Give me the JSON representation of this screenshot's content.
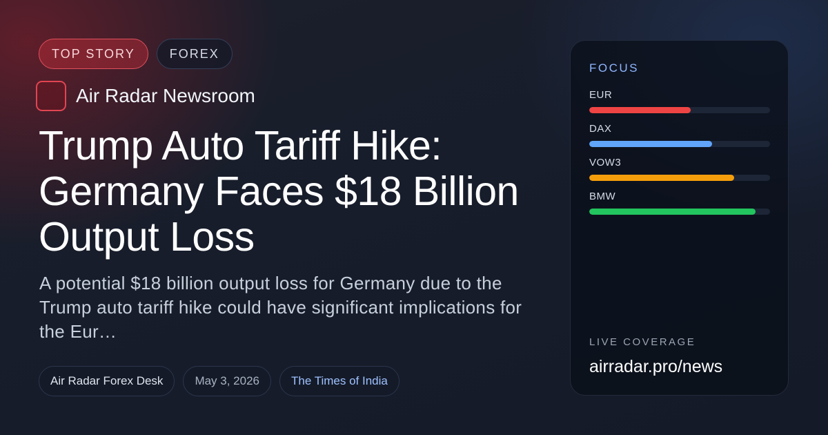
{
  "tags": [
    {
      "label": "TOP STORY"
    },
    {
      "label": "FOREX"
    }
  ],
  "newsroom": {
    "name": "Air Radar Newsroom",
    "logo_color": "#e24552"
  },
  "headline": "Trump Auto Tariff  Hike: Germany Faces $18 Billion Output Loss",
  "summary": "A potential $18 billion output loss for Germany due to the Trump auto tariff hike could have significant implications for the Eur…",
  "meta": {
    "desk": "Air Radar Forex Desk",
    "date": "May 3, 2026",
    "source": "The Times of India"
  },
  "focus": {
    "label": "FOCUS",
    "items": [
      {
        "symbol": "EUR",
        "level": 0.56,
        "color": "#ef4444"
      },
      {
        "symbol": "DAX",
        "level": 0.68,
        "color": "#60a5fa"
      },
      {
        "symbol": "VOW3",
        "level": 0.8,
        "color": "#f59e0b"
      },
      {
        "symbol": "BMW",
        "level": 0.92,
        "color": "#22c55e"
      }
    ]
  },
  "live": {
    "label": "LIVE COVERAGE",
    "url": "airradar.pro/news"
  }
}
